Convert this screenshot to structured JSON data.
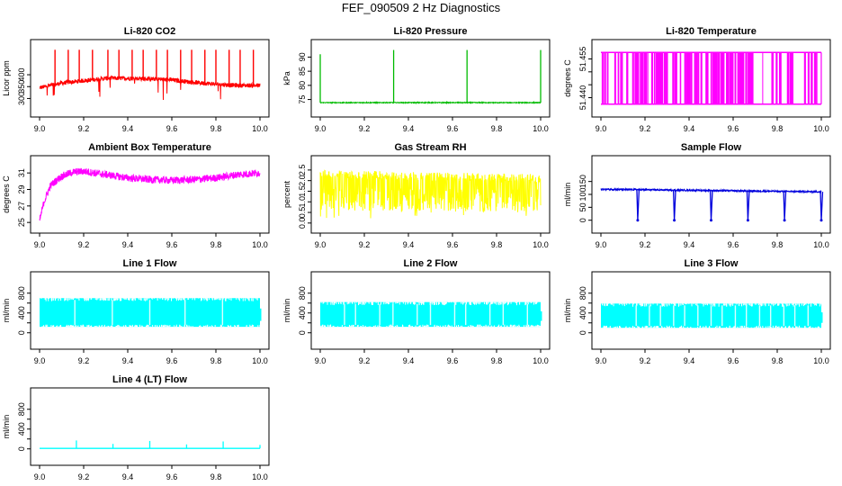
{
  "page": {
    "title": "FEF_090509  2 Hz Diagnostics"
  },
  "colors": {
    "red": "#ff0000",
    "green": "#00bb00",
    "magenta": "#ff00ff",
    "yellow": "#ffff00",
    "blue": "#0000dd",
    "cyan": "#00ffff"
  },
  "chart_data": [
    {
      "id": "co2",
      "type": "line",
      "title": "Li-820 CO2",
      "ylabel": "Licor ppm",
      "color": "red",
      "xlim": [
        9.0,
        10.0
      ],
      "ylim": [
        260,
        510
      ],
      "xticks": [
        "9.0",
        "9.2",
        "9.4",
        "9.6",
        "9.8",
        "10.0"
      ],
      "yticks": [
        {
          "v": 300,
          "l": "300"
        },
        {
          "v": 350,
          "l": "350"
        },
        {
          "v": 400,
          "l": "400"
        }
      ],
      "x": [
        9.0,
        9.1,
        9.2,
        9.3,
        9.4,
        9.5,
        9.6,
        9.7,
        9.8,
        9.9,
        10.0
      ],
      "values": [
        345,
        365,
        375,
        385,
        385,
        383,
        378,
        368,
        360,
        355,
        355
      ]
    },
    {
      "id": "pressure",
      "type": "line",
      "title": "Li-820 Pressure",
      "ylabel": "kPa",
      "color": "green",
      "xlim": [
        9.0,
        10.0
      ],
      "ylim": [
        72,
        93
      ],
      "xticks": [
        "9.0",
        "9.2",
        "9.4",
        "9.6",
        "9.8",
        "10.0"
      ],
      "yticks": [
        {
          "v": 75,
          "l": "75"
        },
        {
          "v": 80,
          "l": "80"
        },
        {
          "v": 85,
          "l": "85"
        },
        {
          "v": 90,
          "l": "90"
        }
      ],
      "x": [
        9.0,
        10.0
      ],
      "values": [
        73.9,
        73.9
      ],
      "spikes": [
        {
          "x": 9.0,
          "y": 91
        },
        {
          "x": 9.333,
          "y": 92.5
        },
        {
          "x": 9.666,
          "y": 92.5
        },
        {
          "x": 10.0,
          "y": 92.5
        }
      ]
    },
    {
      "id": "temperature",
      "type": "line",
      "title": "Li-820 Temperature",
      "ylabel": "degrees C",
      "color": "magenta",
      "xlim": [
        9.0,
        10.0
      ],
      "ylim": [
        51.436,
        51.459
      ],
      "xticks": [
        "9.0",
        "9.2",
        "9.4",
        "9.6",
        "9.8",
        "10.0"
      ],
      "yticks": [
        {
          "v": 51.44,
          "l": "51.440"
        },
        {
          "v": 51.445,
          "l": ""
        },
        {
          "v": 51.45,
          "l": ""
        },
        {
          "v": 51.455,
          "l": "51.455"
        }
      ],
      "levels": [
        51.4375,
        51.4575
      ]
    },
    {
      "id": "box_temp",
      "type": "line",
      "title": "Ambient Box Temperature",
      "ylabel": "degrees C",
      "color": "magenta",
      "xlim": [
        9.0,
        10.0
      ],
      "ylim": [
        24.8,
        32.0
      ],
      "xticks": [
        "9.0",
        "9.2",
        "9.4",
        "9.6",
        "9.8",
        "10.0"
      ],
      "yticks": [
        {
          "v": 25,
          "l": "25"
        },
        {
          "v": 27,
          "l": "27"
        },
        {
          "v": 29,
          "l": "29"
        },
        {
          "v": 31,
          "l": "31"
        }
      ],
      "x": [
        9.0,
        9.02,
        9.05,
        9.1,
        9.15,
        9.2,
        9.3,
        9.4,
        9.5,
        9.6,
        9.7,
        9.8,
        9.9,
        10.0
      ],
      "values": [
        25.2,
        27.5,
        29.5,
        30.6,
        31.1,
        31.2,
        30.8,
        30.4,
        30.2,
        30.1,
        30.2,
        30.4,
        30.8,
        31.0
      ]
    },
    {
      "id": "rh",
      "type": "line",
      "title": "Gas Stream RH",
      "ylabel": "percent",
      "color": "yellow",
      "xlim": [
        9.0,
        10.0
      ],
      "ylim": [
        -0.05,
        2.75
      ],
      "xticks": [
        "9.0",
        "9.2",
        "9.4",
        "9.6",
        "9.8",
        "10.0"
      ],
      "yticks": [
        {
          "v": 0.0,
          "l": "0.0"
        },
        {
          "v": 0.5,
          "l": "0.5"
        },
        {
          "v": 1.0,
          "l": "1.0"
        },
        {
          "v": 1.5,
          "l": "1.5"
        },
        {
          "v": 2.0,
          "l": "2.0"
        },
        {
          "v": 2.5,
          "l": "2.5"
        }
      ],
      "upper": [
        2.5,
        2.3
      ],
      "lower": [
        0.6,
        0.5
      ]
    },
    {
      "id": "sample_flow",
      "type": "line",
      "title": "Sample Flow",
      "ylabel": "ml/min",
      "color": "blue",
      "xlim": [
        9.0,
        10.0
      ],
      "ylim": [
        -15,
        215
      ],
      "xticks": [
        "9.0",
        "9.2",
        "9.4",
        "9.6",
        "9.8",
        "10.0"
      ],
      "yticks": [
        {
          "v": 0,
          "l": "0"
        },
        {
          "v": 50,
          "l": "50"
        },
        {
          "v": 100,
          "l": "100"
        },
        {
          "v": 150,
          "l": "150"
        }
      ],
      "x": [
        9.0,
        10.0
      ],
      "values": [
        120,
        110
      ],
      "dips": [
        9.167,
        9.333,
        9.5,
        9.667,
        9.833,
        10.0
      ]
    },
    {
      "id": "line1",
      "type": "line",
      "title": "Line 1 Flow",
      "ylabel": "ml/min",
      "color": "cyan",
      "xlim": [
        9.0,
        10.0
      ],
      "ylim": [
        -150,
        1050
      ],
      "xticks": [
        "9.0",
        "9.2",
        "9.4",
        "9.6",
        "9.8",
        "10.0"
      ],
      "yticks": [
        {
          "v": 0,
          "l": "0"
        },
        {
          "v": 200,
          "l": ""
        },
        {
          "v": 400,
          "l": "400"
        },
        {
          "v": 600,
          "l": ""
        },
        {
          "v": 800,
          "l": "800"
        }
      ],
      "band": [
        120,
        700
      ],
      "gaps": [
        9.16,
        9.33,
        9.5,
        9.66,
        9.83
      ]
    },
    {
      "id": "line2",
      "type": "line",
      "title": "Line 2 Flow",
      "ylabel": "ml/min",
      "color": "cyan",
      "xlim": [
        9.0,
        10.0
      ],
      "ylim": [
        -150,
        1050
      ],
      "xticks": [
        "9.0",
        "9.2",
        "9.4",
        "9.6",
        "9.8",
        "10.0"
      ],
      "yticks": [
        {
          "v": 0,
          "l": "0"
        },
        {
          "v": 200,
          "l": ""
        },
        {
          "v": 400,
          "l": "400"
        },
        {
          "v": 600,
          "l": ""
        },
        {
          "v": 800,
          "l": "800"
        }
      ],
      "band": [
        120,
        620
      ],
      "gaps": [
        9.11,
        9.16,
        9.27,
        9.33,
        9.44,
        9.5,
        9.61,
        9.66,
        9.77,
        9.83,
        9.94
      ]
    },
    {
      "id": "line3",
      "type": "line",
      "title": "Line 3 Flow",
      "ylabel": "ml/min",
      "color": "cyan",
      "xlim": [
        9.0,
        10.0
      ],
      "ylim": [
        -150,
        1050
      ],
      "xticks": [
        "9.0",
        "9.2",
        "9.4",
        "9.6",
        "9.8",
        "10.0"
      ],
      "yticks": [
        {
          "v": 0,
          "l": "0"
        },
        {
          "v": 200,
          "l": ""
        },
        {
          "v": 400,
          "l": "400"
        },
        {
          "v": 600,
          "l": ""
        },
        {
          "v": 800,
          "l": "800"
        }
      ],
      "band": [
        100,
        590
      ],
      "gaps": [
        9.16,
        9.22,
        9.27,
        9.33,
        9.38,
        9.44,
        9.5,
        9.55,
        9.61,
        9.66,
        9.72,
        9.77,
        9.83,
        9.88,
        9.94
      ]
    },
    {
      "id": "line4",
      "type": "line",
      "title": "Line 4 (LT) Flow",
      "ylabel": "ml/min",
      "color": "cyan",
      "xlim": [
        9.0,
        10.0
      ],
      "ylim": [
        -150,
        1050
      ],
      "xticks": [
        "9.0",
        "9.2",
        "9.4",
        "9.6",
        "9.8",
        "10.0"
      ],
      "yticks": [
        {
          "v": 0,
          "l": "0"
        },
        {
          "v": 200,
          "l": ""
        },
        {
          "v": 400,
          "l": "400"
        },
        {
          "v": 600,
          "l": ""
        },
        {
          "v": 800,
          "l": "800"
        }
      ],
      "x": [
        9.0,
        10.0
      ],
      "values": [
        10,
        10
      ],
      "spikes": [
        {
          "x": 9.167,
          "y": 170
        },
        {
          "x": 9.333,
          "y": 100
        },
        {
          "x": 9.5,
          "y": 160
        },
        {
          "x": 9.667,
          "y": 90
        },
        {
          "x": 9.833,
          "y": 150
        },
        {
          "x": 10.0,
          "y": 80
        }
      ]
    }
  ]
}
